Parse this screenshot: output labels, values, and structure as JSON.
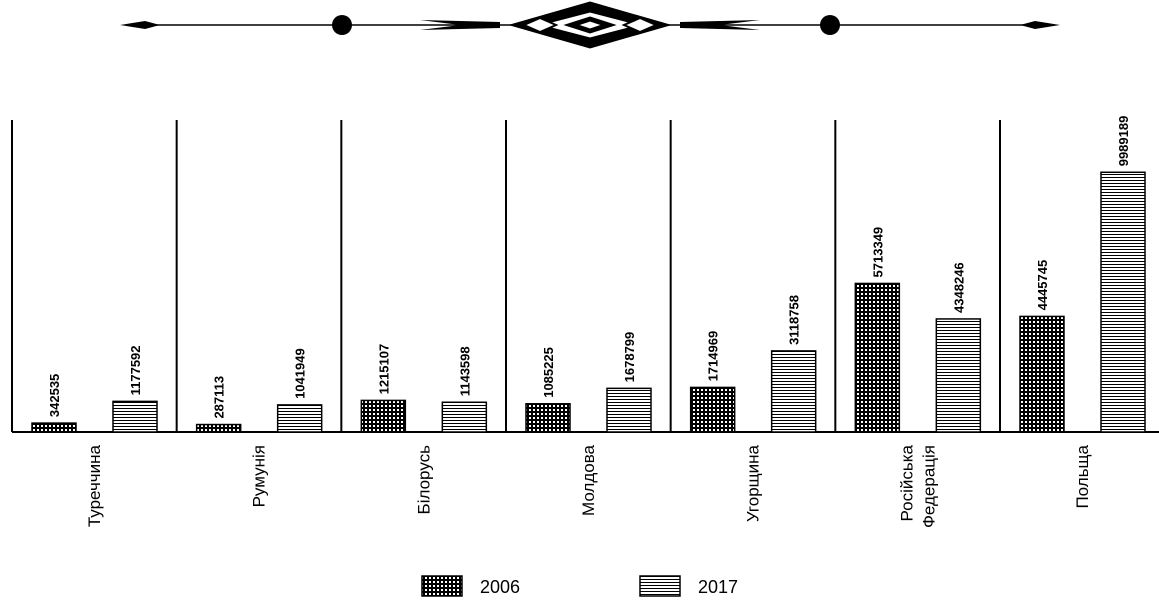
{
  "chart_data": {
    "type": "bar",
    "categories": [
      "Туреччина",
      "Румунія",
      "Білорусь",
      "Молдова",
      "Угорщина",
      "Російська Федерація",
      "Польща"
    ],
    "series": [
      {
        "name": "2006",
        "color": "#000000",
        "pattern": "grid",
        "values": [
          342535,
          287113,
          1215107,
          1085225,
          1714969,
          5713349,
          4445745
        ]
      },
      {
        "name": "2017",
        "color": "#000000",
        "pattern": "hlines",
        "values": [
          1177592,
          1041949,
          1143598,
          1678799,
          3118758,
          4348246,
          9989189
        ]
      }
    ],
    "ylim": [
      0,
      12000000
    ],
    "legend": "bottom"
  }
}
